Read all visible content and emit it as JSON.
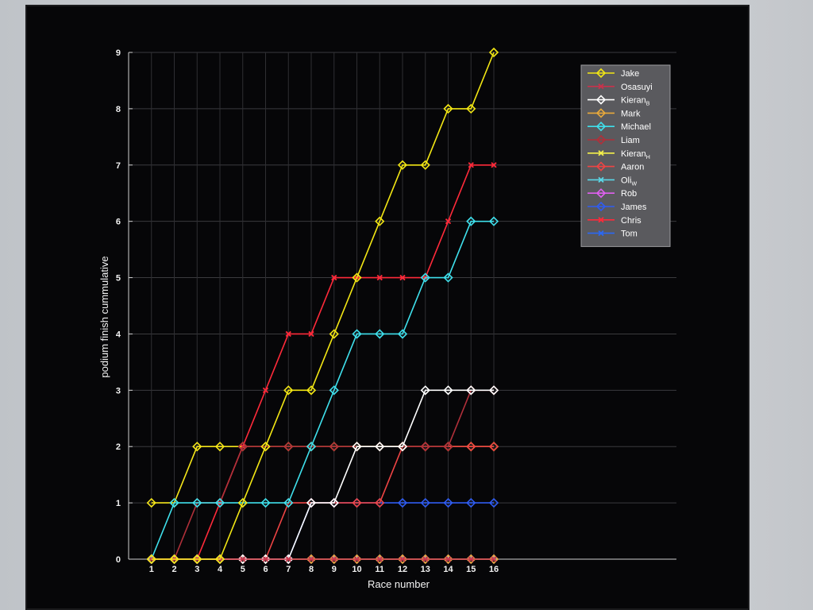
{
  "chart_data": {
    "type": "line",
    "xlabel": "Race number",
    "ylabel": "podium finish cummulative",
    "x": [
      1,
      2,
      3,
      4,
      5,
      6,
      7,
      8,
      9,
      10,
      11,
      12,
      13,
      14,
      15,
      16
    ],
    "xlim": [
      0,
      24
    ],
    "ylim": [
      0,
      9
    ],
    "yticks": [
      0,
      1,
      2,
      3,
      4,
      5,
      6,
      7,
      8,
      9
    ],
    "grid": true,
    "legend_position": "top-right",
    "series": [
      {
        "name": "Jake",
        "color": "#f2e614",
        "marker": "diamond",
        "values": [
          0,
          0,
          0,
          0,
          1,
          2,
          3,
          3,
          4,
          5,
          6,
          7,
          7,
          8,
          8,
          9
        ]
      },
      {
        "name": "Osasuyi",
        "color": "#c8324c",
        "marker": "x",
        "values": [
          0,
          0,
          0,
          0,
          0,
          0,
          0,
          0,
          0,
          0,
          0,
          0,
          0,
          0,
          0,
          0
        ]
      },
      {
        "name": "Kieran",
        "name_sub": "B",
        "color": "#ffffff",
        "marker": "diamond",
        "values": [
          0,
          0,
          0,
          0,
          0,
          0,
          0,
          1,
          1,
          2,
          2,
          2,
          3,
          3,
          3,
          3
        ]
      },
      {
        "name": "Mark",
        "color": "#e8a93a",
        "marker": "diamond",
        "values": [
          0,
          0,
          0,
          0,
          0,
          0,
          0,
          0,
          0,
          0,
          0,
          0,
          0,
          0,
          0,
          0
        ]
      },
      {
        "name": "Michael",
        "color": "#3fe0ec",
        "marker": "diamond",
        "values": [
          0,
          1,
          1,
          1,
          1,
          1,
          1,
          2,
          3,
          4,
          4,
          4,
          5,
          5,
          6,
          6
        ]
      },
      {
        "name": "Liam",
        "color": "#b0303a",
        "marker": "diamond",
        "values": [
          0,
          0,
          1,
          1,
          2,
          2,
          2,
          2,
          2,
          2,
          2,
          2,
          2,
          2,
          3,
          3
        ]
      },
      {
        "name": "Kieran",
        "name_sub": "H",
        "color": "#f4f04a",
        "marker": "x",
        "values": [
          0,
          0,
          0,
          0,
          0,
          0,
          0,
          0,
          0,
          0,
          0,
          0,
          0,
          0,
          0,
          0
        ]
      },
      {
        "name": "Aaron",
        "color": "#ee4444",
        "marker": "diamond",
        "values": [
          0,
          0,
          0,
          0,
          0,
          0,
          1,
          1,
          1,
          1,
          1,
          2,
          2,
          2,
          2,
          2
        ]
      },
      {
        "name": "Oli",
        "name_sub": "W",
        "color": "#5ad8e8",
        "marker": "x",
        "values": [
          0,
          0,
          0,
          0,
          0,
          0,
          0,
          0,
          0,
          0,
          0,
          0,
          0,
          0,
          0,
          0
        ]
      },
      {
        "name": "Rob",
        "color": "#e060f0",
        "marker": "diamond",
        "values": [
          0,
          0,
          0,
          0,
          0,
          0,
          0,
          0,
          0,
          0,
          0,
          0,
          0,
          0,
          0,
          0
        ]
      },
      {
        "name": "James",
        "color": "#2f5cf0",
        "marker": "diamond",
        "values": [
          0,
          0,
          0,
          0,
          0,
          0,
          0,
          1,
          1,
          1,
          1,
          1,
          1,
          1,
          1,
          1
        ]
      },
      {
        "name": "Chris",
        "color": "#ff2a3a",
        "marker": "x",
        "values": [
          0,
          0,
          0,
          1,
          2,
          3,
          4,
          4,
          5,
          5,
          5,
          5,
          5,
          6,
          7,
          7
        ]
      },
      {
        "name": "Tom",
        "color": "#2b68f4",
        "marker": "x",
        "values": [
          0,
          0,
          0,
          0,
          0,
          0,
          0,
          0,
          0,
          0,
          0,
          0,
          0,
          0,
          0,
          0
        ]
      }
    ],
    "background_series": [
      {
        "color": "#f5e61a",
        "marker": "diamond",
        "values": [
          1,
          1,
          2,
          2,
          2,
          2,
          2,
          2,
          2,
          2,
          2,
          2,
          2,
          2,
          2,
          2
        ]
      }
    ]
  }
}
